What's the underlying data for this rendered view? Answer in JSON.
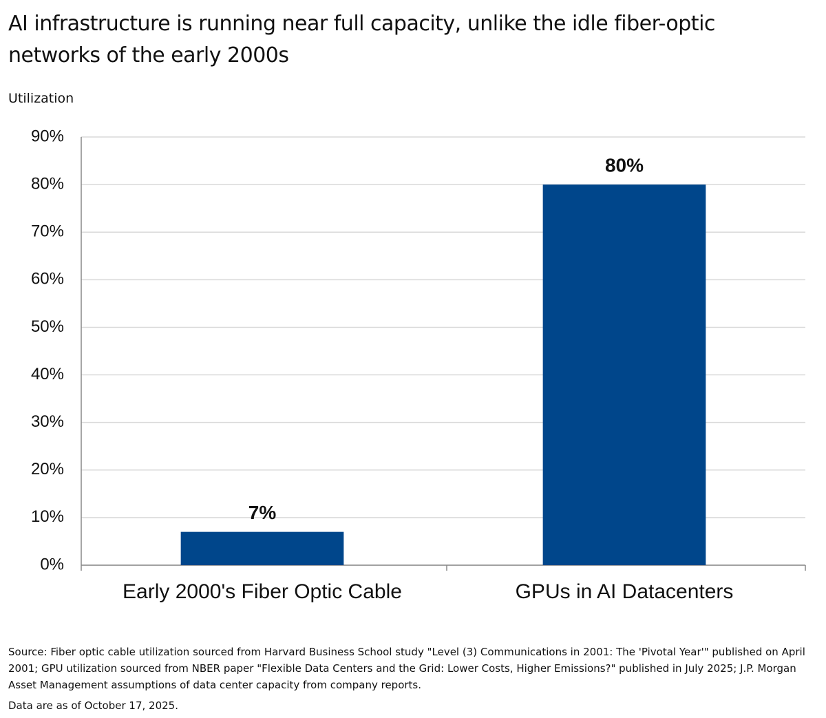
{
  "chart_data": {
    "type": "bar",
    "title": "AI infrastructure is running near full capacity, unlike the idle fiber-optic networks of the early 2000s",
    "y_axis_label": "Utilization",
    "categories": [
      "Early 2000's Fiber Optic Cable",
      "GPUs in AI Datacenters"
    ],
    "values": [
      7,
      80
    ],
    "value_labels": [
      "7%",
      "80%"
    ],
    "color": "#00468b",
    "ylim": [
      0,
      90
    ],
    "yticks": [
      {
        "value": 0,
        "label": "0%"
      },
      {
        "value": 10,
        "label": "10%"
      },
      {
        "value": 20,
        "label": "20%"
      },
      {
        "value": 30,
        "label": "30%"
      },
      {
        "value": 40,
        "label": "40%"
      },
      {
        "value": 50,
        "label": "50%"
      },
      {
        "value": 60,
        "label": "60%"
      },
      {
        "value": 70,
        "label": "70%"
      },
      {
        "value": 80,
        "label": "80%"
      },
      {
        "value": 90,
        "label": "90%"
      }
    ],
    "grid": true,
    "source": "Source: Fiber optic cable utilization sourced from Harvard Business School study \"Level (3) Communications in 2001: The 'Pivotal Year'\" published on April 2001; GPU utilization sourced from NBER paper \"Flexible Data Centers and the Grid: Lower Costs, Higher Emissions?\" published in July 2025; J.P. Morgan Asset Management assumptions of data center capacity from company reports.",
    "note": "Data are as of October 17, 2025."
  }
}
